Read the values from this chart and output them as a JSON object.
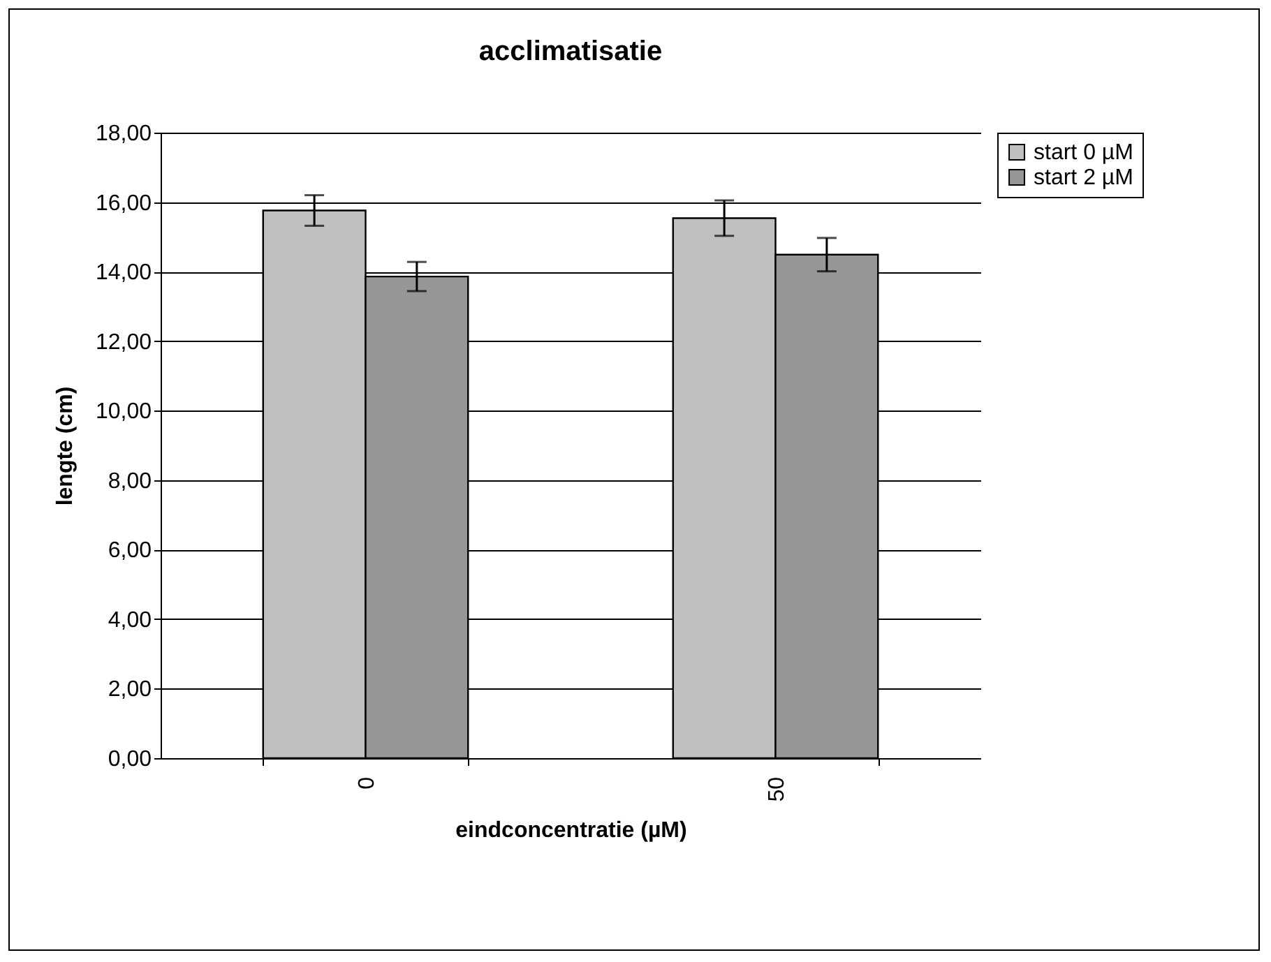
{
  "chart_data": {
    "type": "bar",
    "title": "acclimatisatie",
    "xlabel": "eindconcentratie (µM)",
    "ylabel": "lengte (cm)",
    "categories": [
      "0",
      "50"
    ],
    "series": [
      {
        "name": "start 0 µM",
        "color": "#c0c0c0",
        "values": [
          15.76,
          15.54
        ],
        "errors": [
          0.44,
          0.51
        ]
      },
      {
        "name": "start 2 µM",
        "color": "#969696",
        "values": [
          13.86,
          14.49
        ],
        "errors": [
          0.42,
          0.48
        ]
      }
    ],
    "ylim": [
      0,
      18
    ],
    "yticks": [
      {
        "value": 0,
        "label": "0,00"
      },
      {
        "value": 2,
        "label": "2,00"
      },
      {
        "value": 4,
        "label": "4,00"
      },
      {
        "value": 6,
        "label": "6,00"
      },
      {
        "value": 8,
        "label": "8,00"
      },
      {
        "value": 10,
        "label": "10,00"
      },
      {
        "value": 12,
        "label": "12,00"
      },
      {
        "value": 14,
        "label": "14,00"
      },
      {
        "value": 16,
        "label": "16,00"
      },
      {
        "value": 18,
        "label": "18,00"
      }
    ],
    "grid": "y",
    "legend": "right"
  }
}
